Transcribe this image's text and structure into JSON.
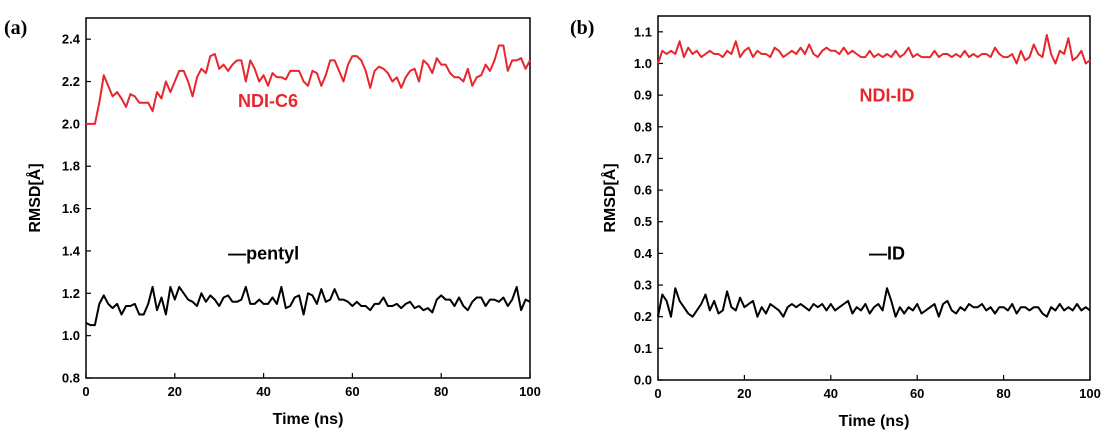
{
  "chart_data": [
    {
      "type": "line",
      "panel_label": "(a)",
      "xlabel": "Time (ns)",
      "ylabel": "RMSD[Å]",
      "xlim": [
        0,
        100
      ],
      "ylim": [
        0.8,
        2.5
      ],
      "xticks": [
        0,
        20,
        40,
        60,
        80,
        100
      ],
      "yticks": [
        0.8,
        1.0,
        1.2,
        1.4,
        1.6,
        1.8,
        2.0,
        2.2,
        2.4
      ],
      "tick_decimals": 1,
      "annotations": [
        {
          "text": "NDI-C6",
          "color": "#e8262d",
          "at": [
            41,
            2.08
          ]
        },
        {
          "text": "—pentyl",
          "color": "#000000",
          "at": [
            40,
            1.36
          ]
        }
      ],
      "series": [
        {
          "name": "NDI-C6",
          "color": "#e8262d",
          "x": [
            0,
            2,
            3,
            4,
            6,
            7,
            8,
            9,
            10,
            11,
            12,
            13,
            14,
            15,
            16,
            17,
            18,
            19,
            20,
            21,
            22,
            23,
            24,
            25,
            26,
            27,
            28,
            29,
            30,
            31,
            32,
            33,
            34,
            35,
            36,
            37,
            38,
            39,
            40,
            41,
            42,
            43,
            44,
            45,
            46,
            47,
            48,
            49,
            50,
            51,
            52,
            53,
            54,
            55,
            56,
            57,
            58,
            59,
            60,
            61,
            62,
            63,
            64,
            65,
            66,
            67,
            68,
            69,
            70,
            71,
            72,
            73,
            74,
            75,
            76,
            77,
            78,
            79,
            80,
            81,
            82,
            83,
            84,
            85,
            86,
            87,
            88,
            89,
            90,
            91,
            92,
            93,
            94,
            95,
            96,
            97,
            98,
            99,
            100
          ],
          "values": [
            2.0,
            2.0,
            2.1,
            2.23,
            2.13,
            2.15,
            2.12,
            2.08,
            2.14,
            2.13,
            2.1,
            2.1,
            2.1,
            2.06,
            2.15,
            2.12,
            2.2,
            2.15,
            2.2,
            2.25,
            2.25,
            2.2,
            2.13,
            2.22,
            2.26,
            2.24,
            2.32,
            2.33,
            2.26,
            2.28,
            2.25,
            2.28,
            2.3,
            2.3,
            2.2,
            2.3,
            2.26,
            2.2,
            2.23,
            2.18,
            2.24,
            2.22,
            2.22,
            2.21,
            2.25,
            2.25,
            2.25,
            2.2,
            2.18,
            2.25,
            2.24,
            2.18,
            2.23,
            2.3,
            2.3,
            2.25,
            2.2,
            2.28,
            2.32,
            2.32,
            2.3,
            2.25,
            2.17,
            2.25,
            2.27,
            2.26,
            2.24,
            2.2,
            2.22,
            2.17,
            2.22,
            2.25,
            2.26,
            2.2,
            2.3,
            2.28,
            2.24,
            2.31,
            2.28,
            2.28,
            2.24,
            2.22,
            2.22,
            2.2,
            2.26,
            2.18,
            2.22,
            2.23,
            2.28,
            2.25,
            2.3,
            2.37,
            2.37,
            2.25,
            2.3,
            2.3,
            2.31,
            2.26,
            2.3
          ]
        },
        {
          "name": "pentyl",
          "color": "#000000",
          "x": [
            0,
            1,
            2,
            3,
            4,
            5,
            6,
            7,
            8,
            9,
            10,
            11,
            12,
            13,
            14,
            15,
            16,
            17,
            18,
            19,
            20,
            21,
            22,
            23,
            24,
            25,
            26,
            27,
            28,
            29,
            30,
            31,
            32,
            33,
            34,
            35,
            36,
            37,
            38,
            39,
            40,
            41,
            42,
            43,
            44,
            45,
            46,
            47,
            48,
            49,
            50,
            51,
            52,
            53,
            54,
            55,
            56,
            57,
            58,
            59,
            60,
            61,
            62,
            63,
            64,
            65,
            66,
            67,
            68,
            69,
            70,
            71,
            72,
            73,
            74,
            75,
            76,
            77,
            78,
            79,
            80,
            81,
            82,
            83,
            84,
            85,
            86,
            87,
            88,
            89,
            90,
            91,
            92,
            93,
            94,
            95,
            96,
            97,
            98,
            99,
            100
          ],
          "values": [
            1.06,
            1.05,
            1.05,
            1.15,
            1.19,
            1.15,
            1.13,
            1.15,
            1.1,
            1.14,
            1.14,
            1.15,
            1.1,
            1.1,
            1.15,
            1.23,
            1.12,
            1.18,
            1.1,
            1.23,
            1.17,
            1.23,
            1.2,
            1.17,
            1.16,
            1.14,
            1.2,
            1.16,
            1.19,
            1.17,
            1.14,
            1.18,
            1.19,
            1.16,
            1.16,
            1.17,
            1.23,
            1.15,
            1.15,
            1.17,
            1.15,
            1.15,
            1.18,
            1.15,
            1.23,
            1.13,
            1.14,
            1.18,
            1.19,
            1.1,
            1.2,
            1.19,
            1.15,
            1.22,
            1.16,
            1.17,
            1.22,
            1.17,
            1.17,
            1.16,
            1.14,
            1.16,
            1.14,
            1.14,
            1.12,
            1.15,
            1.15,
            1.18,
            1.14,
            1.14,
            1.15,
            1.13,
            1.15,
            1.16,
            1.13,
            1.14,
            1.12,
            1.13,
            1.11,
            1.17,
            1.19,
            1.17,
            1.17,
            1.14,
            1.18,
            1.14,
            1.12,
            1.16,
            1.18,
            1.18,
            1.14,
            1.17,
            1.17,
            1.16,
            1.18,
            1.14,
            1.17,
            1.23,
            1.12,
            1.17,
            1.16
          ]
        }
      ]
    },
    {
      "type": "line",
      "panel_label": "(b)",
      "xlabel": "Time (ns)",
      "ylabel": "RMSD[Å]",
      "xlim": [
        0,
        100
      ],
      "ylim": [
        0.0,
        1.15
      ],
      "xticks": [
        0,
        20,
        40,
        60,
        80,
        100
      ],
      "yticks": [
        0.0,
        0.1,
        0.2,
        0.3,
        0.4,
        0.5,
        0.6,
        0.7,
        0.8,
        0.9,
        1.0,
        1.1
      ],
      "tick_decimals": 1,
      "annotations": [
        {
          "text": "NDI-ID",
          "color": "#e8262d",
          "at": [
            53,
            0.88
          ]
        },
        {
          "text": "—ID",
          "color": "#000000",
          "at": [
            53,
            0.38
          ]
        }
      ],
      "series": [
        {
          "name": "NDI-ID",
          "color": "#e8262d",
          "x": [
            0,
            1,
            2,
            3,
            4,
            5,
            6,
            7,
            8,
            9,
            10,
            11,
            12,
            13,
            14,
            15,
            16,
            17,
            18,
            19,
            20,
            21,
            22,
            23,
            24,
            25,
            26,
            27,
            28,
            29,
            30,
            31,
            32,
            33,
            34,
            35,
            36,
            37,
            38,
            39,
            40,
            41,
            42,
            43,
            44,
            45,
            46,
            47,
            48,
            49,
            50,
            51,
            52,
            53,
            54,
            55,
            56,
            57,
            58,
            59,
            60,
            61,
            62,
            63,
            64,
            65,
            66,
            67,
            68,
            69,
            70,
            71,
            72,
            73,
            74,
            75,
            76,
            77,
            78,
            79,
            80,
            81,
            82,
            83,
            84,
            85,
            86,
            87,
            88,
            89,
            90,
            91,
            92,
            93,
            94,
            95,
            96,
            97,
            98,
            99,
            100
          ],
          "values": [
            1.0,
            1.04,
            1.03,
            1.04,
            1.03,
            1.07,
            1.02,
            1.05,
            1.03,
            1.04,
            1.02,
            1.03,
            1.04,
            1.03,
            1.03,
            1.02,
            1.04,
            1.03,
            1.07,
            1.02,
            1.04,
            1.05,
            1.02,
            1.04,
            1.03,
            1.03,
            1.02,
            1.05,
            1.04,
            1.02,
            1.03,
            1.04,
            1.03,
            1.05,
            1.03,
            1.06,
            1.03,
            1.02,
            1.04,
            1.05,
            1.04,
            1.04,
            1.03,
            1.05,
            1.03,
            1.04,
            1.03,
            1.02,
            1.02,
            1.04,
            1.02,
            1.03,
            1.02,
            1.03,
            1.02,
            1.04,
            1.02,
            1.03,
            1.05,
            1.02,
            1.03,
            1.02,
            1.02,
            1.02,
            1.04,
            1.02,
            1.03,
            1.03,
            1.02,
            1.03,
            1.02,
            1.04,
            1.02,
            1.03,
            1.02,
            1.03,
            1.03,
            1.02,
            1.05,
            1.03,
            1.02,
            1.02,
            1.03,
            1.0,
            1.04,
            1.01,
            1.02,
            1.06,
            1.03,
            1.02,
            1.09,
            1.03,
            1.0,
            1.04,
            1.03,
            1.08,
            1.01,
            1.02,
            1.04,
            1.0,
            1.01
          ]
        },
        {
          "name": "ID",
          "color": "#000000",
          "x": [
            0,
            1,
            2,
            3,
            4,
            5,
            6,
            7,
            8,
            9,
            10,
            11,
            12,
            13,
            14,
            15,
            16,
            17,
            18,
            19,
            20,
            21,
            22,
            23,
            24,
            25,
            26,
            27,
            28,
            29,
            30,
            31,
            32,
            33,
            34,
            35,
            36,
            37,
            38,
            39,
            40,
            41,
            42,
            43,
            44,
            45,
            46,
            47,
            48,
            49,
            50,
            51,
            52,
            53,
            54,
            55,
            56,
            57,
            58,
            59,
            60,
            61,
            62,
            63,
            64,
            65,
            66,
            67,
            68,
            69,
            70,
            71,
            72,
            73,
            74,
            75,
            76,
            77,
            78,
            79,
            80,
            81,
            82,
            83,
            84,
            85,
            86,
            87,
            88,
            89,
            90,
            91,
            92,
            93,
            94,
            95,
            96,
            97,
            98,
            99,
            100
          ],
          "values": [
            0.2,
            0.27,
            0.25,
            0.2,
            0.29,
            0.25,
            0.23,
            0.21,
            0.2,
            0.22,
            0.24,
            0.27,
            0.22,
            0.25,
            0.21,
            0.22,
            0.28,
            0.23,
            0.22,
            0.26,
            0.23,
            0.24,
            0.25,
            0.2,
            0.23,
            0.21,
            0.24,
            0.23,
            0.22,
            0.2,
            0.23,
            0.24,
            0.23,
            0.24,
            0.23,
            0.22,
            0.24,
            0.23,
            0.24,
            0.22,
            0.24,
            0.22,
            0.23,
            0.24,
            0.25,
            0.21,
            0.23,
            0.22,
            0.24,
            0.21,
            0.23,
            0.24,
            0.22,
            0.29,
            0.25,
            0.2,
            0.23,
            0.21,
            0.23,
            0.22,
            0.24,
            0.21,
            0.22,
            0.23,
            0.24,
            0.2,
            0.24,
            0.25,
            0.22,
            0.21,
            0.23,
            0.22,
            0.24,
            0.23,
            0.23,
            0.24,
            0.22,
            0.23,
            0.21,
            0.23,
            0.23,
            0.22,
            0.24,
            0.21,
            0.23,
            0.23,
            0.22,
            0.23,
            0.23,
            0.21,
            0.2,
            0.23,
            0.22,
            0.24,
            0.22,
            0.23,
            0.22,
            0.24,
            0.22,
            0.23,
            0.22
          ]
        }
      ]
    }
  ]
}
